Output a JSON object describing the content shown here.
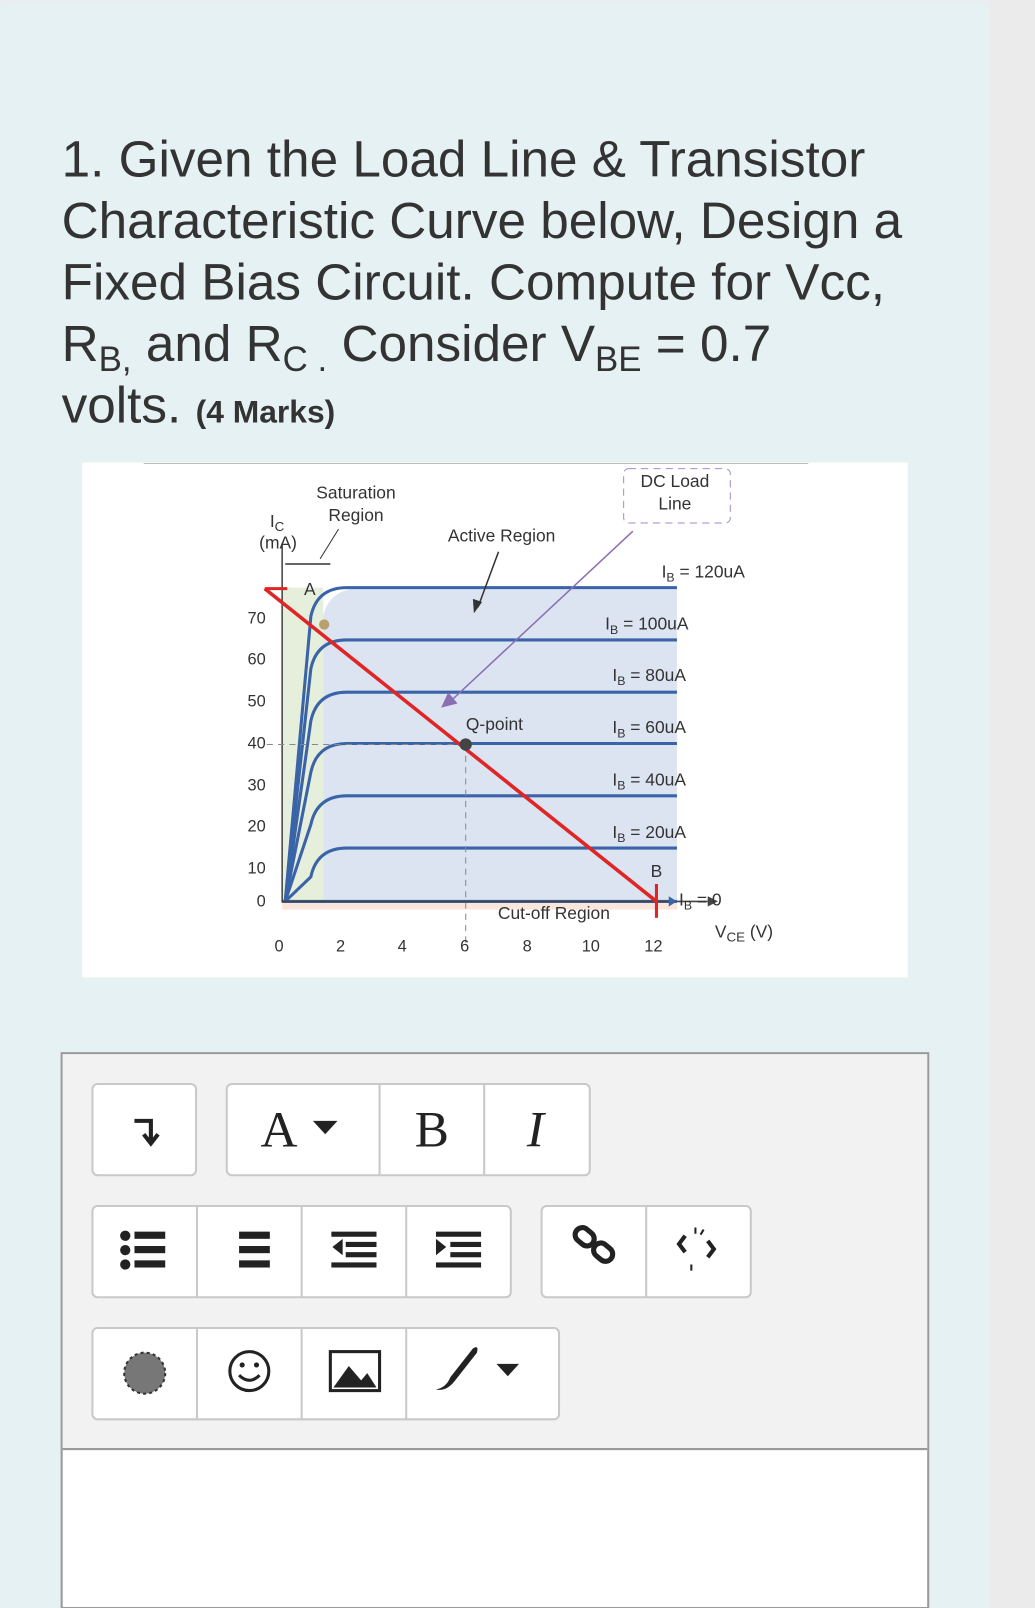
{
  "question": {
    "line1": "1. Given the Load Line & Transistor",
    "line2": "Characteristic Curve below, Design a",
    "line3": "Fixed Bias Circuit. Compute for Vcc,",
    "line4": {
      "r1": "R",
      "sub1": "B,",
      "t1": " and R",
      "sub2": "C .",
      "t2": " Consider V",
      "sub3": "BE",
      "t3": " = 0.7"
    },
    "line5": {
      "text": "volts.",
      "marks": "(4 Marks)"
    }
  },
  "figure": {
    "saturation": [
      "Saturation",
      "Region"
    ],
    "ic_label": {
      "main": "I",
      "sub": "C",
      "unit": "(mA)"
    },
    "active_region": "Active Region",
    "dc_load_line": [
      "DC Load",
      "Line"
    ],
    "q_point": "Q-point",
    "cutoff_region": "Cut-off Region",
    "point_a": "A",
    "point_b": "B",
    "y_tick_labels": [
      "70",
      "60",
      "50",
      "40",
      "30",
      "20",
      "10",
      "0"
    ],
    "x_tick_labels": [
      "0",
      "2",
      "4",
      "6",
      "8",
      "10",
      "12"
    ],
    "ib_labels": [
      {
        "main": "I",
        "sub": "B",
        "rest": " = 120uA"
      },
      {
        "main": "I",
        "sub": "B",
        "rest": " = 100uA"
      },
      {
        "main": "I",
        "sub": "B",
        "rest": " = 80uA"
      },
      {
        "main": "I",
        "sub": "B",
        "rest": " = 60uA"
      },
      {
        "main": "I",
        "sub": "B",
        "rest": " = 40uA"
      },
      {
        "main": "I",
        "sub": "B",
        "rest": " = 20uA"
      },
      {
        "main": "I",
        "sub": "B",
        "rest": " = 0"
      }
    ],
    "vce_label": {
      "main": "V",
      "sub": "CE",
      "unit": " (V)"
    }
  },
  "editor": {
    "font_button": "A",
    "bold_button": "B",
    "italic_button": "I"
  }
}
